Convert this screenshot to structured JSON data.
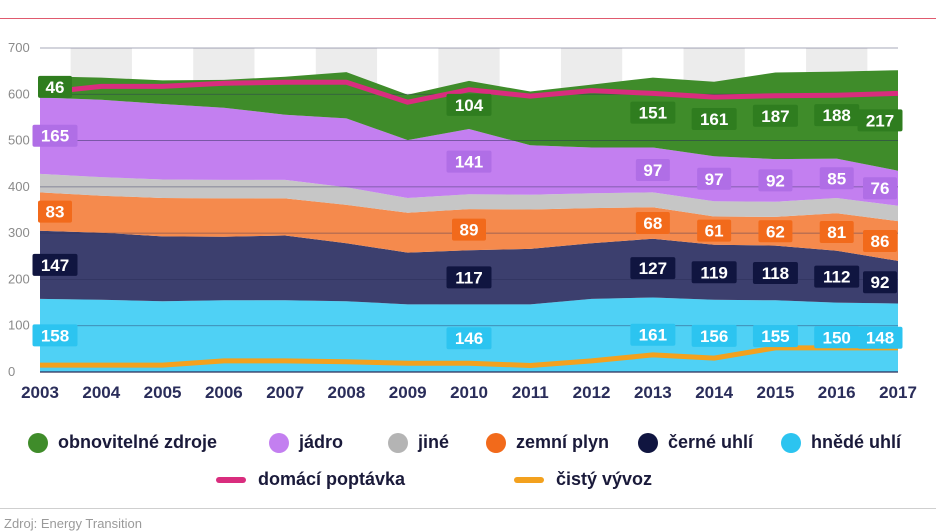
{
  "chart_data": {
    "type": "area",
    "x": [
      2003,
      2004,
      2005,
      2006,
      2007,
      2008,
      2009,
      2010,
      2011,
      2012,
      2013,
      2014,
      2015,
      2016,
      2017
    ],
    "ylim": [
      0,
      700
    ],
    "yticks": [
      0,
      100,
      200,
      300,
      400,
      500,
      600,
      700
    ],
    "stacked_series": [
      {
        "name": "hnědé uhlí",
        "color": "#4fd1f5",
        "values": [
          158,
          156,
          153,
          155,
          155,
          153,
          146,
          146,
          146,
          158,
          161,
          156,
          155,
          150,
          148
        ]
      },
      {
        "name": "černé uhlí",
        "color": "#3c3f6e",
        "values": [
          147,
          145,
          140,
          137,
          140,
          125,
          112,
          117,
          120,
          120,
          127,
          119,
          118,
          112,
          92
        ]
      },
      {
        "name": "zemní plyn",
        "color": "#f58a4d",
        "values": [
          83,
          80,
          83,
          83,
          80,
          83,
          86,
          89,
          85,
          76,
          68,
          61,
          62,
          81,
          86
        ]
      },
      {
        "name": "jiné",
        "color": "#c6c6c6",
        "values": [
          40,
          40,
          40,
          40,
          40,
          38,
          32,
          32,
          32,
          32,
          32,
          33,
          33,
          33,
          33
        ]
      },
      {
        "name": "jádro",
        "color": "#c37ff0",
        "values": [
          165,
          167,
          163,
          156,
          141,
          149,
          125,
          141,
          107,
          99,
          97,
          97,
          92,
          85,
          76
        ]
      },
      {
        "name": "obnovitelné zdroje",
        "color": "#3f8c2a",
        "values": [
          46,
          48,
          51,
          60,
          82,
          100,
          98,
          104,
          116,
          136,
          151,
          161,
          187,
          188,
          217
        ]
      }
    ],
    "line_series": [
      {
        "name": "domácí poptávka",
        "color": "#d92d7e",
        "values": [
          603,
          617,
          617,
          624,
          626,
          626,
          583,
          610,
          596,
          608,
          602,
          594,
          597,
          598,
          602
        ]
      },
      {
        "name": "čistý vývoz",
        "color": "#f3a11e",
        "values": [
          15,
          15,
          15,
          24,
          24,
          22,
          19,
          19,
          14,
          24,
          37,
          30,
          52,
          52,
          52
        ]
      }
    ],
    "value_labels": [
      {
        "series": "obnovitelné zdroje",
        "year": 2003,
        "value": 46
      },
      {
        "series": "obnovitelné zdroje",
        "year": 2010,
        "value": 104
      },
      {
        "series": "obnovitelné zdroje",
        "year": 2013,
        "value": 151
      },
      {
        "series": "obnovitelné zdroje",
        "year": 2014,
        "value": 161
      },
      {
        "series": "obnovitelné zdroje",
        "year": 2015,
        "value": 187
      },
      {
        "series": "obnovitelné zdroje",
        "year": 2016,
        "value": 188
      },
      {
        "series": "obnovitelné zdroje",
        "year": 2017,
        "value": 217
      },
      {
        "series": "jádro",
        "year": 2003,
        "value": 165
      },
      {
        "series": "jádro",
        "year": 2010,
        "value": 141
      },
      {
        "series": "jádro",
        "year": 2013,
        "value": 97
      },
      {
        "series": "jádro",
        "year": 2014,
        "value": 97
      },
      {
        "series": "jádro",
        "year": 2015,
        "value": 92
      },
      {
        "series": "jádro",
        "year": 2016,
        "value": 85
      },
      {
        "series": "jádro",
        "year": 2017,
        "value": 76
      },
      {
        "series": "zemní plyn",
        "year": 2003,
        "value": 83
      },
      {
        "series": "zemní plyn",
        "year": 2010,
        "value": 89
      },
      {
        "series": "zemní plyn",
        "year": 2013,
        "value": 68
      },
      {
        "series": "zemní plyn",
        "year": 2014,
        "value": 61
      },
      {
        "series": "zemní plyn",
        "year": 2015,
        "value": 62
      },
      {
        "series": "zemní plyn",
        "year": 2016,
        "value": 81
      },
      {
        "series": "zemní plyn",
        "year": 2017,
        "value": 86
      },
      {
        "series": "černé uhlí",
        "year": 2003,
        "value": 147
      },
      {
        "series": "černé uhlí",
        "year": 2010,
        "value": 117
      },
      {
        "series": "černé uhlí",
        "year": 2013,
        "value": 127
      },
      {
        "series": "černé uhlí",
        "year": 2014,
        "value": 119
      },
      {
        "series": "černé uhlí",
        "year": 2015,
        "value": 118
      },
      {
        "series": "černé uhlí",
        "year": 2016,
        "value": 112
      },
      {
        "series": "černé uhlí",
        "year": 2017,
        "value": 92
      },
      {
        "series": "hnědé uhlí",
        "year": 2003,
        "value": 158
      },
      {
        "series": "hnědé uhlí",
        "year": 2010,
        "value": 146
      },
      {
        "series": "hnědé uhlí",
        "year": 2013,
        "value": 161
      },
      {
        "series": "hnědé uhlí",
        "year": 2014,
        "value": 156
      },
      {
        "series": "hnědé uhlí",
        "year": 2015,
        "value": 155
      },
      {
        "series": "hnědé uhlí",
        "year": 2016,
        "value": 150
      },
      {
        "series": "hnědé uhlí",
        "year": 2017,
        "value": 148
      }
    ],
    "label_colors": {
      "obnovitelné zdroje": "#2f7d1f",
      "jádro": "#b06ee6",
      "zemní plyn": "#f26a1b",
      "černé uhlí": "#101540",
      "hnědé uhlí": "#2cc4f0"
    },
    "legend_placement": "bottom"
  },
  "legend": {
    "renewables": "obnovitelné zdroje",
    "nuclear": "jádro",
    "other": "jiné",
    "gas": "zemní plyn",
    "hard_coal": "černé uhlí",
    "lignite": "hnědé uhlí",
    "demand": "domácí poptávka",
    "export": "čistý vývoz"
  },
  "source": "Zdroj: Energy Transition",
  "colors": {
    "axis_text": "#2a2d5a",
    "grid": "#2a2d5a",
    "year_band": "#ececec",
    "top_rule": "#e05a6e"
  }
}
